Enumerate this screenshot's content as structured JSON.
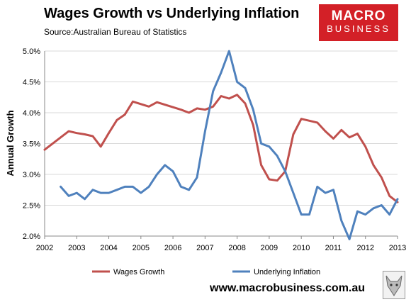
{
  "header": {
    "title": "Wages Growth vs Underlying Inflation",
    "subtitle": "Source:Australian Bureau of Statistics"
  },
  "logo": {
    "line1": "MACRO",
    "line2": "BUSINESS"
  },
  "footer": {
    "url": "www.macrobusiness.com.au"
  },
  "colors": {
    "wages": "#c0504d",
    "inflation": "#4f81bd",
    "grid": "#d9d9d9"
  },
  "chart_data": {
    "type": "line",
    "title": "Wages Growth vs Underlying Inflation",
    "xlabel": "",
    "ylabel": "Annual Growth",
    "xlim": [
      2002,
      2013
    ],
    "ylim": [
      2.0,
      5.0
    ],
    "x_ticks": [
      "2002",
      "2003",
      "2004",
      "2005",
      "2006",
      "2007",
      "2008",
      "2009",
      "2010",
      "2011",
      "2012",
      "2013"
    ],
    "y_ticks": [
      "2.0%",
      "2.5%",
      "3.0%",
      "3.5%",
      "4.0%",
      "4.5%",
      "5.0%"
    ],
    "grid": "horizontal",
    "legend": "bottom",
    "series": [
      {
        "name": "Wages Growth",
        "color": "#c0504d",
        "x": [
          2002.0,
          2002.5,
          2002.75,
          2003.0,
          2003.25,
          2003.5,
          2003.75,
          2004.0,
          2004.25,
          2004.5,
          2004.75,
          2005.0,
          2005.25,
          2005.5,
          2005.75,
          2006.0,
          2006.25,
          2006.5,
          2006.75,
          2007.0,
          2007.25,
          2007.5,
          2007.75,
          2008.0,
          2008.25,
          2008.5,
          2008.75,
          2009.0,
          2009.25,
          2009.5,
          2009.75,
          2010.0,
          2010.25,
          2010.5,
          2010.75,
          2011.0,
          2011.25,
          2011.5,
          2011.75,
          2012.0,
          2012.25,
          2012.5,
          2012.75,
          2013.0
        ],
        "y": [
          3.4,
          3.6,
          3.7,
          3.67,
          3.65,
          3.62,
          3.45,
          3.67,
          3.88,
          3.97,
          4.18,
          4.14,
          4.1,
          4.17,
          4.13,
          4.09,
          4.05,
          4.0,
          4.07,
          4.05,
          4.1,
          4.27,
          4.23,
          4.29,
          4.15,
          3.8,
          3.15,
          2.92,
          2.9,
          3.05,
          3.65,
          3.9,
          3.87,
          3.84,
          3.7,
          3.58,
          3.72,
          3.6,
          3.66,
          3.45,
          3.15,
          2.95,
          2.65,
          2.55
        ]
      },
      {
        "name": "Underlying Inflation",
        "color": "#4f81bd",
        "x": [
          2002.5,
          2002.75,
          2003.0,
          2003.25,
          2003.5,
          2003.75,
          2004.0,
          2004.25,
          2004.5,
          2004.75,
          2005.0,
          2005.25,
          2005.5,
          2005.75,
          2006.0,
          2006.25,
          2006.5,
          2006.75,
          2007.0,
          2007.25,
          2007.5,
          2007.75,
          2008.0,
          2008.25,
          2008.5,
          2008.75,
          2009.0,
          2009.25,
          2009.5,
          2009.75,
          2010.0,
          2010.25,
          2010.5,
          2010.75,
          2011.0,
          2011.25,
          2011.5,
          2011.75,
          2012.0,
          2012.25,
          2012.5,
          2012.75,
          2013.0
        ],
        "y": [
          2.8,
          2.65,
          2.7,
          2.6,
          2.75,
          2.7,
          2.7,
          2.75,
          2.8,
          2.8,
          2.7,
          2.8,
          3.0,
          3.15,
          3.05,
          2.8,
          2.75,
          2.95,
          3.7,
          4.35,
          4.65,
          5.0,
          4.5,
          4.4,
          4.05,
          3.5,
          3.45,
          3.3,
          3.05,
          2.7,
          2.35,
          2.35,
          2.8,
          2.7,
          2.75,
          2.25,
          1.95,
          2.4,
          2.35,
          2.45,
          2.5,
          2.35,
          2.6
        ]
      }
    ]
  }
}
